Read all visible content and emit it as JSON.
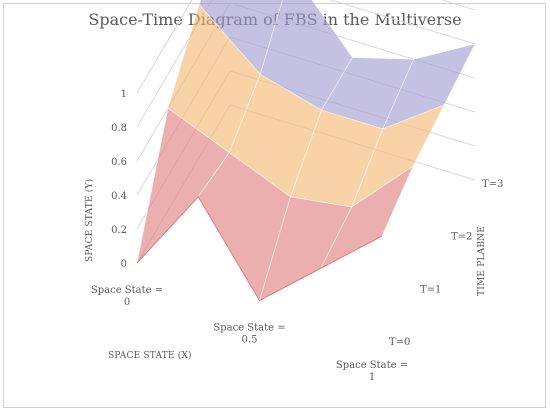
{
  "chart_data": {
    "type": "surface",
    "title": "Space-Time Diagram of FBS in the Multiverse",
    "xlabel": "SPACE STATE (X)",
    "ylabel": "SPACE STATE (Y)",
    "zlabel": "TIME PLABNE",
    "x_categories": [
      "Space State = 0",
      "Space State = 0.5",
      "Space State = 1"
    ],
    "x": [
      0,
      0.25,
      0.5,
      0.75,
      1
    ],
    "y_ticks": [
      "0",
      "0.2",
      "0.4",
      "0.6",
      "0.8",
      "1"
    ],
    "ylim": [
      0,
      1
    ],
    "time_planes": [
      "T=0",
      "T=1",
      "T=2",
      "T=3"
    ],
    "series": [
      {
        "name": "T=0",
        "values": [
          0,
          0.5,
          0,
          0.3,
          0.6
        ]
      },
      {
        "name": "T=1",
        "values": [
          0.6,
          0.45,
          0.3,
          0.35,
          0.7
        ]
      },
      {
        "name": "T=2",
        "values": [
          0.9,
          0.6,
          0.5,
          0.5,
          0.75
        ]
      },
      {
        "name": "T=3",
        "values": [
          1,
          0.9,
          0.5,
          0.6,
          0.8
        ]
      }
    ],
    "grid": true,
    "colors": [
      "#e07a7a",
      "#f5b66e",
      "#9f98d0",
      "#ee8f8f"
    ]
  }
}
